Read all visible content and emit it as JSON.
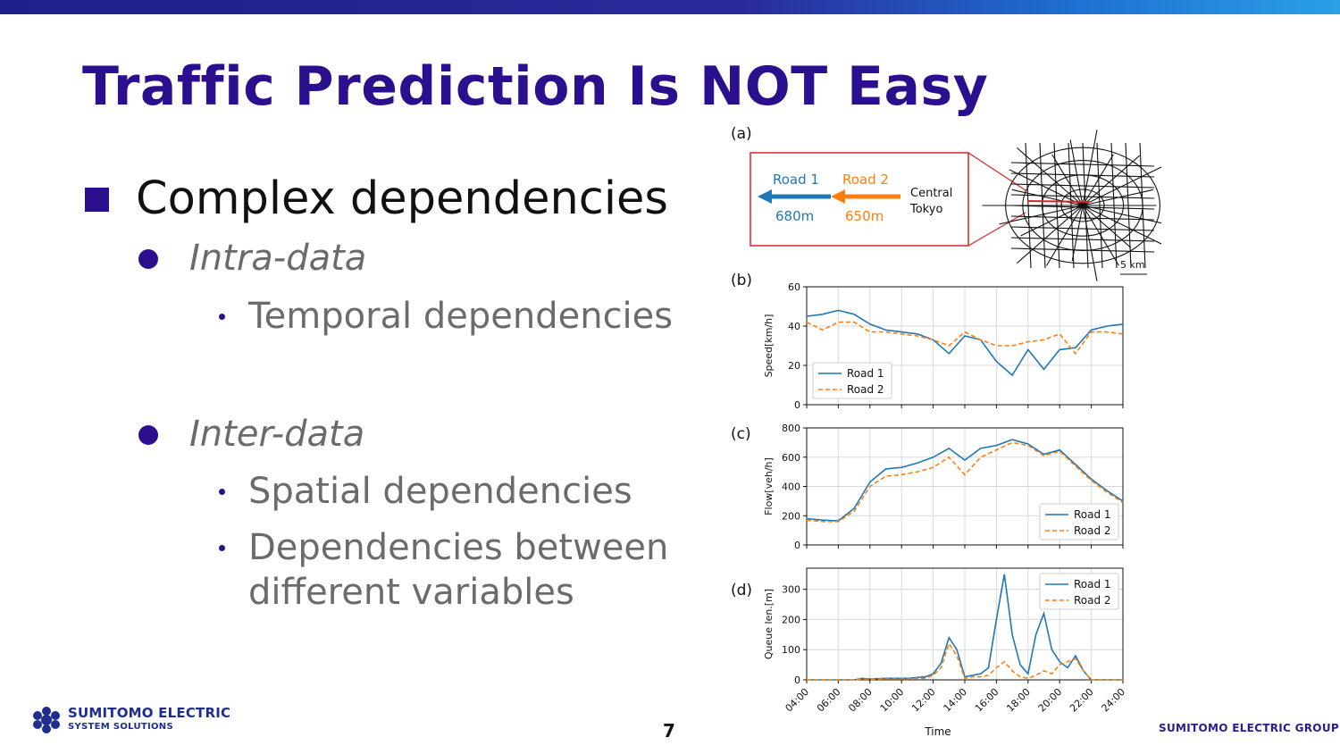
{
  "slide": {
    "title": "Traffic Prediction Is NOT Easy",
    "bullet": "Complex dependencies",
    "intra": {
      "label": "Intra-data",
      "items": [
        "Temporal dependencies"
      ]
    },
    "inter": {
      "label": "Inter-data",
      "items": [
        "Spatial dependencies",
        "Dependencies between",
        "different variables"
      ]
    },
    "page_number": "7",
    "footer_group": "SUMITOMO ELECTRIC GROUP",
    "logo": {
      "name": "SUMITOMO ELECTRIC",
      "sub": "SYSTEM SOLUTIONS"
    }
  },
  "colors": {
    "title": "#2b0f8f",
    "road1": "#1f77b4",
    "road2": "#ff7f0e",
    "inset_border": "#d62728"
  },
  "map_panel": {
    "label": "(a)",
    "road1": {
      "name": "Road 1",
      "length": "680m"
    },
    "road2": {
      "name": "Road 2",
      "length": "650m"
    },
    "destination": [
      "Central",
      "Tokyo"
    ],
    "scale": "5 km"
  },
  "chart_data": [
    {
      "type": "line",
      "panel_label": "(b)",
      "ylabel": "Speed[km/h]",
      "ylim": [
        0,
        60
      ],
      "yticks": [
        "0",
        "20",
        "40",
        "60"
      ],
      "grid": true,
      "legend": "bottom-left",
      "x": [
        4,
        5,
        6,
        7,
        8,
        9,
        10,
        11,
        12,
        13,
        14,
        15,
        16,
        17,
        18,
        19,
        20,
        21,
        22,
        23,
        24
      ],
      "series": [
        {
          "name": "Road 1",
          "style": "solid",
          "values": [
            45,
            46,
            48,
            46,
            41,
            38,
            37,
            36,
            33,
            26,
            35,
            33,
            22,
            15,
            28,
            18,
            28,
            29,
            38,
            40,
            41
          ]
        },
        {
          "name": "Road 2",
          "style": "dashed",
          "values": [
            42,
            38,
            42,
            42,
            37,
            37,
            36,
            35,
            33,
            30,
            37,
            33,
            30,
            30,
            32,
            33,
            36,
            26,
            37,
            37,
            36
          ]
        }
      ]
    },
    {
      "type": "line",
      "panel_label": "(c)",
      "ylabel": "Flow[veh/h]",
      "ylim": [
        0,
        800
      ],
      "yticks": [
        "0",
        "200",
        "400",
        "600",
        "800"
      ],
      "grid": true,
      "legend": "bottom-right",
      "x": [
        4,
        5,
        6,
        7,
        8,
        9,
        10,
        11,
        12,
        13,
        14,
        15,
        16,
        17,
        18,
        19,
        20,
        21,
        22,
        23,
        24
      ],
      "series": [
        {
          "name": "Road 1",
          "style": "solid",
          "values": [
            180,
            170,
            165,
            250,
            430,
            520,
            530,
            560,
            600,
            660,
            580,
            660,
            680,
            720,
            690,
            620,
            650,
            550,
            450,
            370,
            300
          ]
        },
        {
          "name": "Road 2",
          "style": "dashed",
          "values": [
            170,
            160,
            160,
            230,
            400,
            470,
            480,
            500,
            530,
            600,
            480,
            600,
            650,
            700,
            680,
            610,
            640,
            540,
            440,
            360,
            290
          ]
        }
      ]
    },
    {
      "type": "line",
      "panel_label": "(d)",
      "ylabel": "Queue len.[m]",
      "xlabel": "Time",
      "ylim": [
        0,
        370
      ],
      "yticks": [
        "0",
        "100",
        "200",
        "300"
      ],
      "grid": true,
      "legend": "top-right",
      "xticks": [
        "04:00",
        "06:00",
        "08:00",
        "10:00",
        "12:00",
        "14:00",
        "16:00",
        "18:00",
        "20:00",
        "22:00",
        "24:00"
      ],
      "x": [
        4,
        5,
        6,
        7,
        7.5,
        8,
        9,
        10,
        10.5,
        11,
        11.5,
        12,
        12.5,
        13,
        13.5,
        14,
        14.5,
        15,
        15.5,
        16,
        16.5,
        17,
        17.5,
        18,
        18.5,
        19,
        19.5,
        20,
        20.5,
        21,
        21.5,
        22,
        23,
        24
      ],
      "series": [
        {
          "name": "Road 1",
          "style": "solid",
          "values": [
            0,
            0,
            0,
            0,
            5,
            3,
            5,
            5,
            5,
            8,
            10,
            20,
            55,
            140,
            100,
            10,
            15,
            20,
            40,
            200,
            350,
            150,
            50,
            20,
            150,
            220,
            100,
            60,
            40,
            80,
            30,
            0,
            0,
            0
          ]
        },
        {
          "name": "Road 2",
          "style": "dashed",
          "values": [
            0,
            0,
            0,
            0,
            3,
            2,
            3,
            3,
            3,
            5,
            5,
            15,
            40,
            120,
            80,
            5,
            10,
            10,
            15,
            40,
            60,
            30,
            10,
            5,
            15,
            30,
            20,
            50,
            60,
            70,
            30,
            0,
            0,
            0
          ]
        }
      ]
    }
  ]
}
